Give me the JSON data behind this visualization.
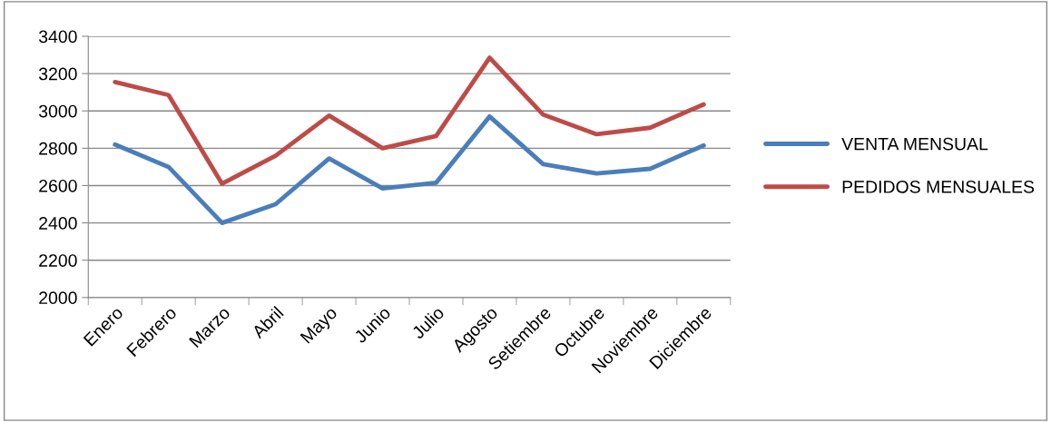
{
  "chart_data": {
    "type": "line",
    "categories": [
      "Enero",
      "Febrero",
      "Marzo",
      "Abril",
      "Mayo",
      "Junio",
      "Julio",
      "Agosto",
      "Setiembre",
      "Octubre",
      "Noviembre",
      "Diciembre"
    ],
    "series": [
      {
        "name": "VENTA MENSUAL",
        "color": "#4a7ebb",
        "values": [
          2820,
          2700,
          2400,
          2500,
          2745,
          2585,
          2615,
          2970,
          2715,
          2665,
          2690,
          2815
        ]
      },
      {
        "name": "PEDIDOS MENSUALES",
        "color": "#be4b48",
        "values": [
          3155,
          3085,
          2610,
          2760,
          2975,
          2800,
          2865,
          3285,
          2980,
          2875,
          2910,
          3035
        ]
      }
    ],
    "ylim": [
      2000,
      3400
    ],
    "yticks": [
      2000,
      2200,
      2400,
      2600,
      2800,
      3000,
      3200,
      3400
    ],
    "grid": "y",
    "legend": "right",
    "marker": "none",
    "line_style": "solid"
  }
}
